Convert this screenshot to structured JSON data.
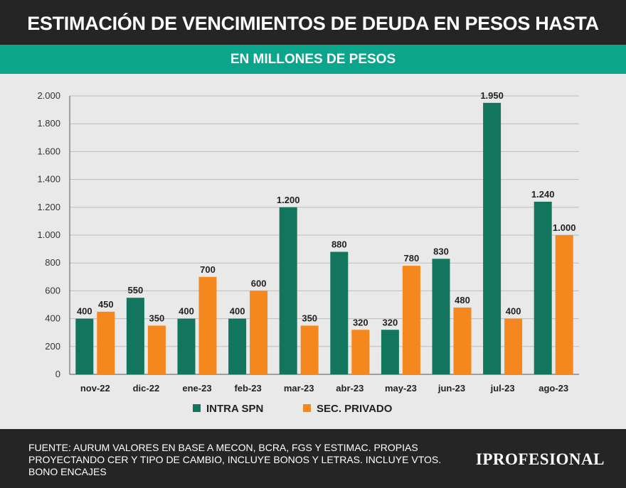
{
  "header": {
    "title": "ESTIMACIÓN DE VENCIMIENTOS DE DEUDA EN PESOS HASTA PASO*",
    "subtitle": "EN MILLONES DE PESOS"
  },
  "chart_data": {
    "type": "bar",
    "categories": [
      "nov-22",
      "dic-22",
      "ene-23",
      "feb-23",
      "mar-23",
      "abr-23",
      "may-23",
      "jun-23",
      "jul-23",
      "ago-23"
    ],
    "series": [
      {
        "name": "INTRA SPN",
        "values": [
          400,
          550,
          400,
          400,
          1200,
          880,
          320,
          830,
          1950,
          1240
        ],
        "labels": [
          "400",
          "550",
          "400",
          "400",
          "1.200",
          "880",
          "320",
          "830",
          "1.950",
          "1.240"
        ],
        "color": "#12755e"
      },
      {
        "name": "SEC. PRIVADO",
        "values": [
          450,
          350,
          700,
          600,
          350,
          320,
          780,
          480,
          400,
          1000
        ],
        "labels": [
          "450",
          "350",
          "700",
          "600",
          "350",
          "320",
          "780",
          "480",
          "400",
          "1.000"
        ],
        "color": "#f5871f"
      }
    ],
    "ylim": [
      0,
      2000
    ],
    "yticks": [
      0,
      200,
      400,
      600,
      800,
      1000,
      1200,
      1400,
      1600,
      1800,
      2000
    ],
    "ytick_labels": [
      "0",
      "200",
      "400",
      "600",
      "800",
      "1.000",
      "1.200",
      "1.400",
      "1.600",
      "1.800",
      "2.000"
    ],
    "legend_position": "bottom"
  },
  "footer": {
    "source": "FUENTE: AURUM VALORES EN BASE A MECON, BCRA, FGS Y ESTIMAC. PROPIAS PROYECTANDO CER Y TIPO DE CAMBIO, INCLUYE BONOS Y LETRAS. INCLUYE VTOS. BONO ENCAJES",
    "brand": "IPROFESIONAL"
  }
}
